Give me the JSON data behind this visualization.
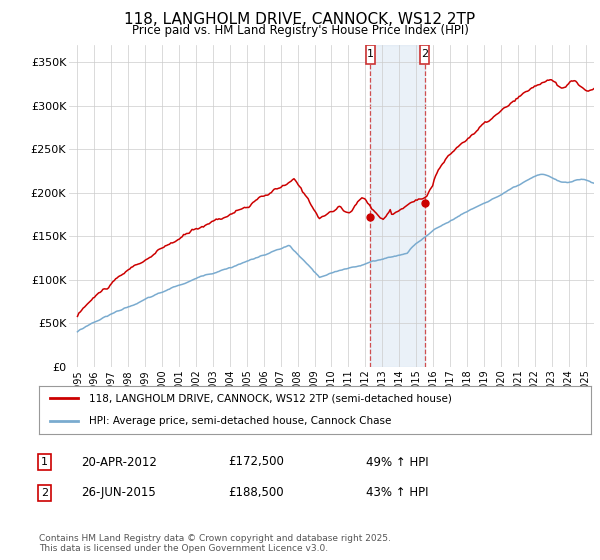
{
  "title_line1": "118, LANGHOLM DRIVE, CANNOCK, WS12 2TP",
  "title_line2": "Price paid vs. HM Land Registry's House Price Index (HPI)",
  "ylim": [
    0,
    370000
  ],
  "yticks": [
    0,
    50000,
    100000,
    150000,
    200000,
    250000,
    300000,
    350000
  ],
  "ytick_labels": [
    "£0",
    "£50K",
    "£100K",
    "£150K",
    "£200K",
    "£250K",
    "£300K",
    "£350K"
  ],
  "xlim_start": 1994.5,
  "xlim_end": 2025.5,
  "xtick_years": [
    1995,
    1996,
    1997,
    1998,
    1999,
    2000,
    2001,
    2002,
    2003,
    2004,
    2005,
    2006,
    2007,
    2008,
    2009,
    2010,
    2011,
    2012,
    2013,
    2014,
    2015,
    2016,
    2017,
    2018,
    2019,
    2020,
    2021,
    2022,
    2023,
    2024,
    2025
  ],
  "purchase1_x": 2012.3,
  "purchase1_y": 172500,
  "purchase2_x": 2015.5,
  "purchase2_y": 188500,
  "purchase1_date": "20-APR-2012",
  "purchase1_price": "£172,500",
  "purchase1_hpi": "49% ↑ HPI",
  "purchase2_date": "26-JUN-2015",
  "purchase2_price": "£188,500",
  "purchase2_hpi": "43% ↑ HPI",
  "line1_color": "#cc0000",
  "line2_color": "#7aabcf",
  "legend_line1": "118, LANGHOLM DRIVE, CANNOCK, WS12 2TP (semi-detached house)",
  "legend_line2": "HPI: Average price, semi-detached house, Cannock Chase",
  "footnote": "Contains HM Land Registry data © Crown copyright and database right 2025.\nThis data is licensed under the Open Government Licence v3.0.",
  "background_color": "#ffffff",
  "grid_color": "#cccccc",
  "shade_color": "#ccdcee",
  "shade_alpha": 0.4
}
